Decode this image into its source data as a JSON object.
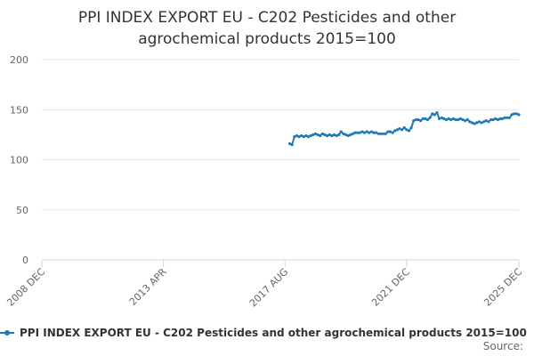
{
  "chart_data": {
    "type": "line",
    "title": "PPI INDEX EXPORT EU - C202 Pesticides and other agrochemical products 2015=100",
    "title_lines": [
      "PPI INDEX EXPORT EU - C202 Pesticides and other",
      "agrochemical products 2015=100"
    ],
    "xlabel": "",
    "ylabel": "",
    "ylim": [
      0,
      200
    ],
    "yticks": [
      0,
      50,
      100,
      150,
      200
    ],
    "xlim": [
      2008.917,
      2025.917
    ],
    "xticks": [
      {
        "label": "2008 DEC",
        "value": 2008.917
      },
      {
        "label": "2013 APR",
        "value": 2013.25
      },
      {
        "label": "2017 AUG",
        "value": 2017.583
      },
      {
        "label": "2021 DEC",
        "value": 2021.917
      },
      {
        "label": "2025 DEC",
        "value": 2025.917
      }
    ],
    "grid": true,
    "legend": "bottom",
    "series": [
      {
        "name": "PPI INDEX EXPORT EU - C202 Pesticides and other agrochemical products 2015=100",
        "color": "#1f7bb8",
        "points": [
          [
            2017.75,
            116
          ],
          [
            2017.833,
            115
          ],
          [
            2017.917,
            123
          ],
          [
            2018.0,
            124
          ],
          [
            2018.083,
            123
          ],
          [
            2018.167,
            124
          ],
          [
            2018.25,
            123
          ],
          [
            2018.333,
            124
          ],
          [
            2018.417,
            123
          ],
          [
            2018.5,
            124
          ],
          [
            2018.583,
            125
          ],
          [
            2018.667,
            126
          ],
          [
            2018.75,
            125
          ],
          [
            2018.833,
            124
          ],
          [
            2018.917,
            126
          ],
          [
            2019.0,
            125
          ],
          [
            2019.083,
            124
          ],
          [
            2019.167,
            125
          ],
          [
            2019.25,
            124
          ],
          [
            2019.333,
            125
          ],
          [
            2019.417,
            124
          ],
          [
            2019.5,
            125
          ],
          [
            2019.583,
            128
          ],
          [
            2019.667,
            126
          ],
          [
            2019.75,
            125
          ],
          [
            2019.833,
            124
          ],
          [
            2019.917,
            125
          ],
          [
            2020.0,
            126
          ],
          [
            2020.083,
            127
          ],
          [
            2020.167,
            127
          ],
          [
            2020.25,
            127
          ],
          [
            2020.333,
            128
          ],
          [
            2020.417,
            127
          ],
          [
            2020.5,
            128
          ],
          [
            2020.583,
            127
          ],
          [
            2020.667,
            128
          ],
          [
            2020.75,
            127
          ],
          [
            2020.833,
            127
          ],
          [
            2020.917,
            126
          ],
          [
            2021.0,
            126
          ],
          [
            2021.083,
            126
          ],
          [
            2021.167,
            126
          ],
          [
            2021.25,
            128
          ],
          [
            2021.333,
            128
          ],
          [
            2021.417,
            127
          ],
          [
            2021.5,
            129
          ],
          [
            2021.583,
            130
          ],
          [
            2021.667,
            131
          ],
          [
            2021.75,
            130
          ],
          [
            2021.833,
            132
          ],
          [
            2021.917,
            130
          ],
          [
            2022.0,
            129
          ],
          [
            2022.083,
            132
          ],
          [
            2022.167,
            139
          ],
          [
            2022.25,
            140
          ],
          [
            2022.333,
            140
          ],
          [
            2022.417,
            139
          ],
          [
            2022.5,
            141
          ],
          [
            2022.583,
            141
          ],
          [
            2022.667,
            140
          ],
          [
            2022.75,
            142
          ],
          [
            2022.833,
            146
          ],
          [
            2022.917,
            145
          ],
          [
            2023.0,
            147
          ],
          [
            2023.083,
            141
          ],
          [
            2023.167,
            142
          ],
          [
            2023.25,
            141
          ],
          [
            2023.333,
            140
          ],
          [
            2023.417,
            141
          ],
          [
            2023.5,
            140
          ],
          [
            2023.583,
            141
          ],
          [
            2023.667,
            140
          ],
          [
            2023.75,
            140
          ],
          [
            2023.833,
            141
          ],
          [
            2023.917,
            140
          ],
          [
            2024.0,
            139
          ],
          [
            2024.083,
            140
          ],
          [
            2024.167,
            138
          ],
          [
            2024.25,
            137
          ],
          [
            2024.333,
            136
          ],
          [
            2024.417,
            137
          ],
          [
            2024.5,
            138
          ],
          [
            2024.583,
            137
          ],
          [
            2024.667,
            138
          ],
          [
            2024.75,
            139
          ],
          [
            2024.833,
            138
          ],
          [
            2024.917,
            140
          ],
          [
            2025.0,
            140
          ],
          [
            2025.083,
            141
          ],
          [
            2025.167,
            140
          ],
          [
            2025.25,
            141
          ],
          [
            2025.333,
            141
          ],
          [
            2025.417,
            142
          ],
          [
            2025.5,
            142
          ],
          [
            2025.583,
            142
          ],
          [
            2025.667,
            145
          ],
          [
            2025.75,
            146
          ],
          [
            2025.833,
            146
          ],
          [
            2025.917,
            145
          ]
        ]
      }
    ]
  },
  "legend_label": "PPI INDEX EXPORT EU - C202 Pesticides and other agrochemical products 2015=100",
  "source_label": "Source:"
}
